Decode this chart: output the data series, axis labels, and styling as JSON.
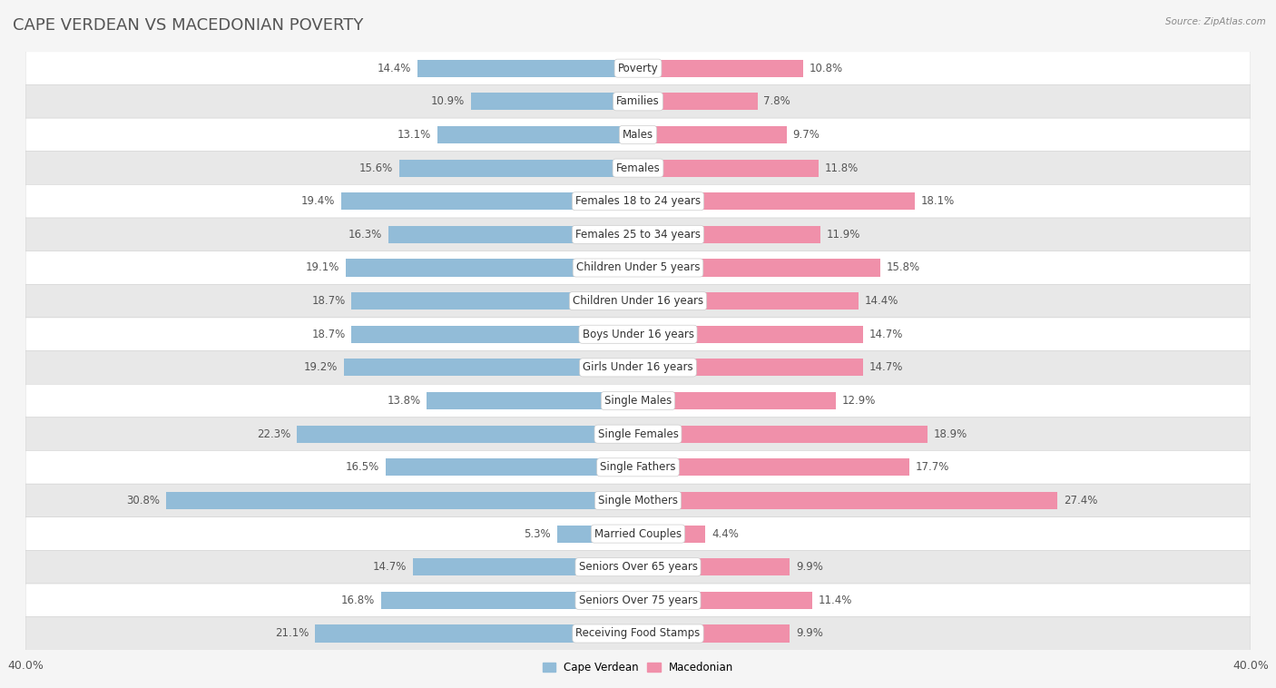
{
  "title": "CAPE VERDEAN VS MACEDONIAN POVERTY",
  "source": "Source: ZipAtlas.com",
  "categories": [
    "Poverty",
    "Families",
    "Males",
    "Females",
    "Females 18 to 24 years",
    "Females 25 to 34 years",
    "Children Under 5 years",
    "Children Under 16 years",
    "Boys Under 16 years",
    "Girls Under 16 years",
    "Single Males",
    "Single Females",
    "Single Fathers",
    "Single Mothers",
    "Married Couples",
    "Seniors Over 65 years",
    "Seniors Over 75 years",
    "Receiving Food Stamps"
  ],
  "cape_verdean": [
    14.4,
    10.9,
    13.1,
    15.6,
    19.4,
    16.3,
    19.1,
    18.7,
    18.7,
    19.2,
    13.8,
    22.3,
    16.5,
    30.8,
    5.3,
    14.7,
    16.8,
    21.1
  ],
  "macedonian": [
    10.8,
    7.8,
    9.7,
    11.8,
    18.1,
    11.9,
    15.8,
    14.4,
    14.7,
    14.7,
    12.9,
    18.9,
    17.7,
    27.4,
    4.4,
    9.9,
    11.4,
    9.9
  ],
  "cape_verdean_color": "#92bcd8",
  "macedonian_color": "#f090aa",
  "background_color": "#f5f5f5",
  "row_color_light": "#ffffff",
  "row_color_dark": "#e8e8e8",
  "label_pill_color": "#ffffff",
  "max_val": 40.0,
  "legend_cape_verdean": "Cape Verdean",
  "legend_macedonian": "Macedonian",
  "title_fontsize": 13,
  "label_fontsize": 8.5,
  "value_fontsize": 8.5,
  "axis_fontsize": 9
}
